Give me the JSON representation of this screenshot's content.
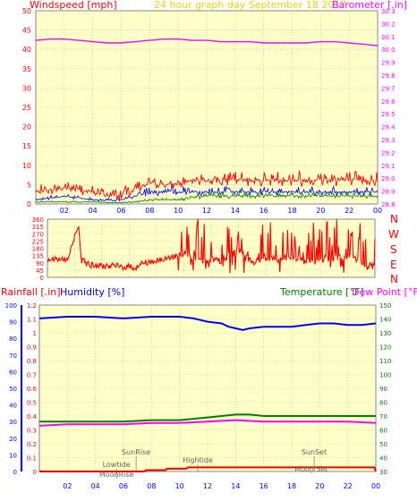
{
  "header": {
    "left_title": "Windspeed [mph]",
    "center_title": "24 hour graph day   September 18 2017",
    "right_title": "Barometer [.in]"
  },
  "colors": {
    "panel_bg": "#ffffc8",
    "grid": "#b4b4b4",
    "red": "#ff0000",
    "blue": "#0000ff",
    "green": "#008000",
    "magenta": "#ff00ff",
    "title_yellow": "#f0d000",
    "annotation": "#606060"
  },
  "panel2": {
    "direction_labels": [
      "N",
      "W",
      "S",
      "E",
      "N"
    ]
  },
  "panel3": {
    "rainfall_label": "Rainfall [.in]",
    "humidity_label": "Humidity [%]",
    "temperature_label": "Temperature [°F]",
    "dewpoint_label": "Dew Point [°F]",
    "events": [
      {
        "label": "SunRise",
        "hour": 6.9
      },
      {
        "label": "Lowtide",
        "hour": 5.5
      },
      {
        "label": "MoonRise",
        "hour": 5.5
      },
      {
        "label": "Hightide",
        "hour": 11.3
      },
      {
        "label": "SunSet",
        "hour": 19.6
      },
      {
        "label": "Moon Set",
        "hour": 19.4
      }
    ]
  },
  "chart_data": [
    {
      "type": "line",
      "title": "24 hour graph day   September 18 2017",
      "xticks": [
        "02",
        "04",
        "06",
        "08",
        "10",
        "12",
        "14",
        "16",
        "18",
        "20",
        "22",
        "00"
      ],
      "x_range_hours": [
        0,
        24
      ],
      "left_axis": {
        "label": "Windspeed [mph]",
        "ylim": [
          0,
          50
        ],
        "ticks": [
          0,
          5,
          10,
          15,
          20,
          25,
          30,
          35,
          40,
          45,
          50
        ]
      },
      "right_axis": {
        "label": "Barometer [.in]",
        "ylim": [
          28.8,
          30.3
        ],
        "ticks": [
          28.8,
          28.9,
          29.0,
          29.1,
          29.2,
          29.3,
          29.4,
          29.5,
          29.6,
          29.7,
          29.8,
          29.9,
          30.0,
          30.1,
          30.2,
          30.3
        ]
      },
      "series": [
        {
          "color": "#ff0000",
          "axis": "left",
          "x": [
            0,
            2,
            4,
            5,
            6,
            7,
            8,
            9,
            10,
            11,
            12,
            13,
            14,
            15,
            16,
            17,
            18,
            19,
            20,
            21,
            22,
            23,
            24
          ],
          "y": [
            3,
            4,
            3,
            2,
            2,
            4,
            5,
            5,
            5,
            6,
            6,
            6,
            6,
            6,
            6,
            6,
            6,
            6,
            6,
            6,
            6,
            6,
            6
          ],
          "y_max": [
            6,
            7,
            6,
            5,
            5,
            8,
            8,
            7,
            8,
            9,
            10,
            9,
            10,
            10,
            10,
            10,
            11,
            10,
            10,
            10,
            10,
            10,
            10
          ]
        },
        {
          "color": "#0000ff",
          "axis": "left",
          "x": [
            0,
            2,
            4,
            5,
            6,
            7,
            8,
            9,
            10,
            11,
            12,
            13,
            14,
            15,
            16,
            17,
            18,
            19,
            20,
            21,
            22,
            23,
            24
          ],
          "y": [
            1,
            2,
            1,
            1,
            1,
            2,
            3,
            3,
            3,
            3,
            3,
            3,
            3,
            3,
            3,
            3,
            3,
            3,
            3,
            3,
            3,
            3,
            3
          ]
        },
        {
          "color": "#008000",
          "axis": "left",
          "x": [
            0,
            2,
            4,
            5,
            6,
            7,
            8,
            9,
            10,
            11,
            12,
            13,
            14,
            15,
            16,
            17,
            18,
            19,
            20,
            21,
            22,
            23,
            24
          ],
          "y": [
            0.5,
            0.5,
            0.5,
            0.3,
            0.3,
            0.5,
            1,
            1,
            1,
            1.5,
            2,
            2,
            2,
            2,
            2,
            2,
            2,
            2,
            2,
            2,
            2,
            2,
            2
          ]
        },
        {
          "color": "#ff00ff",
          "axis": "right",
          "x": [
            0,
            1,
            2,
            3,
            4,
            5,
            6,
            7,
            8,
            9,
            10,
            11,
            12,
            13,
            14,
            15,
            16,
            17,
            18,
            19,
            20,
            21,
            22,
            23,
            24
          ],
          "y": [
            30.07,
            30.08,
            30.08,
            30.07,
            30.06,
            30.05,
            30.05,
            30.06,
            30.07,
            30.08,
            30.08,
            30.07,
            30.07,
            30.06,
            30.06,
            30.06,
            30.05,
            30.05,
            30.05,
            30.05,
            30.06,
            30.06,
            30.05,
            30.04,
            30.03
          ]
        }
      ]
    },
    {
      "type": "line",
      "title": "",
      "xticks": [],
      "x_range_hours": [
        0,
        24
      ],
      "left_axis": {
        "label": "",
        "ylim": [
          0,
          360
        ],
        "ticks": [
          0,
          45,
          90,
          135,
          180,
          225,
          270,
          315,
          360
        ]
      },
      "series": [
        {
          "color": "#ff0000",
          "x": [
            0,
            1.5,
            2.2,
            2.3,
            2.5,
            2.6,
            2.8,
            3.2,
            3.5,
            4.5,
            5,
            5.5,
            6,
            6.5,
            7,
            7.5,
            8,
            9,
            10,
            11,
            12,
            13,
            14,
            15,
            16,
            17,
            18,
            19,
            20,
            21,
            22,
            23,
            24
          ],
          "y": [
            110,
            110,
            310,
            310,
            100,
            130,
            90,
            75,
            70,
            70,
            70,
            65,
            65,
            60,
            90,
            95,
            100,
            120,
            150,
            100,
            110,
            100,
            180,
            90,
            120,
            110,
            130,
            90,
            120,
            110,
            140,
            100,
            60
          ],
          "spikes": {
            "from_hour": 9.5,
            "to_hour": 24,
            "min": 20,
            "max": 360
          }
        }
      ]
    },
    {
      "type": "line",
      "title": "",
      "xticks": [
        "02",
        "04",
        "06",
        "08",
        "10",
        "12",
        "14",
        "16",
        "18",
        "20",
        "22",
        "00"
      ],
      "x_range_hours": [
        0,
        24
      ],
      "left_axis": {
        "label": "Rainfall [.in]",
        "ylim": [
          0,
          1.2
        ],
        "ticks": [
          0,
          0.1,
          0.2,
          0.3,
          0.4,
          0.5,
          0.6,
          0.7,
          0.8,
          0.9,
          1,
          1.1,
          1.2
        ]
      },
      "humidity_axis": {
        "label": "Humidity [%]",
        "ylim": [
          0,
          100
        ],
        "ticks": [
          0,
          10,
          20,
          30,
          40,
          50,
          60,
          70,
          80,
          90,
          100
        ]
      },
      "right_axis": {
        "label": "Temperature [°F]",
        "ylim": [
          30,
          150
        ],
        "ticks": [
          30,
          40,
          50,
          60,
          70,
          80,
          90,
          100,
          110,
          120,
          130,
          140,
          150
        ]
      },
      "series": [
        {
          "name": "Humidity [%]",
          "color": "#0000ff",
          "axis": "humidity",
          "x": [
            0,
            2,
            4,
            6,
            8,
            10,
            11,
            12,
            13,
            13.5,
            14,
            14.5,
            15,
            16,
            17,
            18,
            19,
            20,
            21,
            22,
            23,
            24
          ],
          "y": [
            92,
            93,
            93,
            92,
            93,
            93,
            92,
            90,
            89,
            87,
            86,
            85,
            86,
            87,
            87,
            87,
            88,
            89,
            89,
            88,
            88,
            89
          ]
        },
        {
          "name": "Temperature [°F]",
          "color": "#008000",
          "axis": "right",
          "x": [
            0,
            2,
            4,
            6,
            8,
            10,
            11,
            12,
            13,
            14,
            15,
            16,
            17,
            18,
            20,
            22,
            24
          ],
          "y": [
            66,
            66,
            66,
            66,
            67,
            67,
            68,
            69,
            70,
            71,
            71,
            70,
            70,
            70,
            70,
            70,
            70
          ]
        },
        {
          "name": "Dew Point [°F]",
          "color": "#ff00ff",
          "axis": "right",
          "x": [
            0,
            2,
            4,
            6,
            8,
            10,
            12,
            14,
            16,
            18,
            20,
            22,
            24
          ],
          "y": [
            63,
            64,
            64,
            64,
            65,
            65,
            66,
            67,
            66,
            66,
            66,
            66,
            65
          ]
        },
        {
          "name": "Rainfall [.in]",
          "color": "#ff0000",
          "axis": "left",
          "x": [
            0,
            7.5,
            7.6,
            9,
            9.1,
            10.5,
            10.6,
            23.9,
            24
          ],
          "y": [
            0,
            0,
            0.01,
            0.01,
            0.02,
            0.02,
            0.03,
            0.03,
            0
          ]
        }
      ]
    }
  ]
}
